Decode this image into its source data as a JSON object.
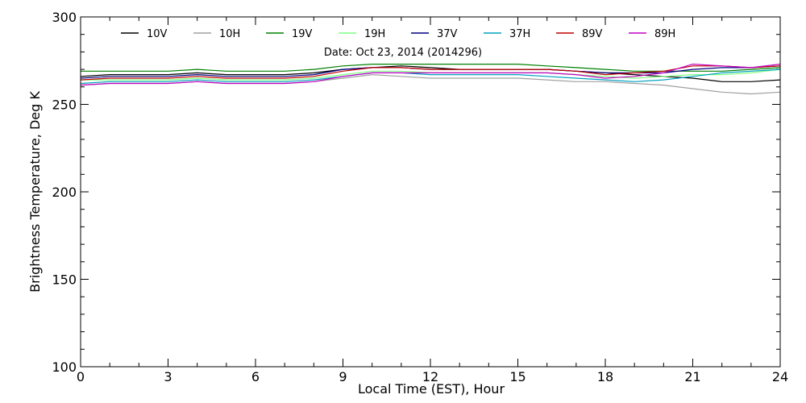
{
  "chart_data": {
    "type": "line",
    "title": "",
    "annotation": "Date: Oct 23, 2014 (2014296)",
    "xlabel": "Local Time (EST), Hour",
    "ylabel": "Brightness Temperature, Deg K",
    "xlim": [
      0,
      24
    ],
    "ylim": [
      100,
      300
    ],
    "xticks": [
      0,
      3,
      6,
      9,
      12,
      15,
      18,
      21,
      24
    ],
    "yticks": [
      100,
      150,
      200,
      250,
      300
    ],
    "x_minor_step": 1,
    "y_minor_step": 10,
    "grid": false,
    "legend_position": "top",
    "x": [
      0,
      1,
      2,
      3,
      4,
      5,
      6,
      7,
      8,
      9,
      10,
      11,
      12,
      13,
      14,
      15,
      16,
      17,
      18,
      19,
      20,
      21,
      22,
      23,
      24
    ],
    "series": [
      {
        "name": "10V",
        "color": "#000000",
        "values": [
          266,
          267,
          267,
          267,
          268,
          267,
          267,
          267,
          268,
          270,
          271,
          272,
          271,
          270,
          270,
          270,
          270,
          269,
          268,
          267,
          266,
          265,
          263,
          263,
          264
        ]
      },
      {
        "name": "10H",
        "color": "#a0a0a0",
        "values": [
          261,
          262,
          262,
          262,
          263,
          262,
          262,
          262,
          263,
          265,
          267,
          266,
          265,
          265,
          265,
          265,
          264,
          263,
          263,
          262,
          261,
          259,
          257,
          256,
          257
        ]
      },
      {
        "name": "19V",
        "color": "#008000",
        "values": [
          269,
          269,
          269,
          269,
          270,
          269,
          269,
          269,
          270,
          272,
          273,
          273,
          273,
          273,
          273,
          273,
          272,
          271,
          270,
          269,
          269,
          269,
          269,
          270,
          271
        ]
      },
      {
        "name": "19H",
        "color": "#80ff80",
        "values": [
          264,
          264,
          264,
          264,
          265,
          264,
          264,
          264,
          265,
          267,
          269,
          269,
          268,
          268,
          268,
          268,
          268,
          267,
          266,
          265,
          266,
          267,
          267,
          268,
          270
        ]
      },
      {
        "name": "37V",
        "color": "#000080",
        "values": [
          265,
          266,
          266,
          266,
          267,
          266,
          266,
          266,
          267,
          270,
          271,
          271,
          270,
          270,
          270,
          270,
          270,
          269,
          268,
          268,
          268,
          270,
          271,
          271,
          272
        ]
      },
      {
        "name": "37H",
        "color": "#00a0c0",
        "values": [
          262,
          263,
          263,
          263,
          264,
          263,
          263,
          263,
          264,
          266,
          268,
          268,
          267,
          267,
          267,
          267,
          266,
          265,
          264,
          263,
          264,
          266,
          268,
          269,
          270
        ]
      },
      {
        "name": "89V",
        "color": "#c00000",
        "values": [
          264,
          265,
          265,
          265,
          266,
          265,
          265,
          265,
          266,
          269,
          271,
          271,
          270,
          270,
          270,
          270,
          270,
          269,
          267,
          268,
          269,
          272,
          272,
          271,
          272
        ]
      },
      {
        "name": "89H",
        "color": "#c000c0",
        "values": [
          261,
          262,
          262,
          262,
          263,
          262,
          262,
          262,
          263,
          266,
          268,
          268,
          268,
          268,
          268,
          268,
          268,
          267,
          265,
          266,
          268,
          273,
          272,
          271,
          273
        ]
      }
    ]
  }
}
